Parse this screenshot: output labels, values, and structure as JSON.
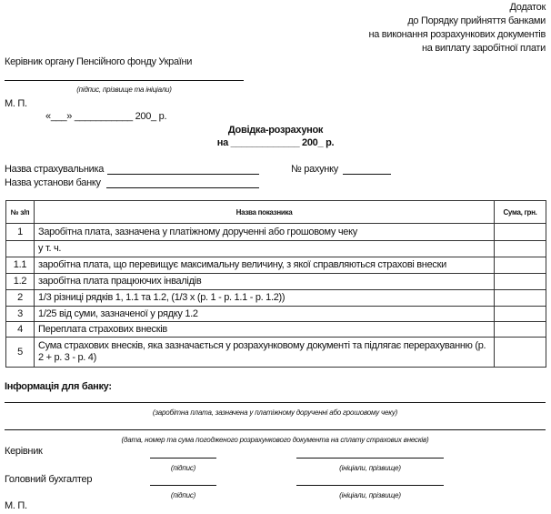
{
  "header": {
    "lines": [
      "Додаток",
      "до Порядку прийняття банками",
      "на виконання розрахункових документів",
      "на виплату заробітної плати"
    ]
  },
  "approval": {
    "head_label": "Керівник органу Пенсійного фонду України",
    "signature_caption": "(підпис, прізвище та ініціали)",
    "stamp": "М. П.",
    "date_line": "«___» ___________ 200_ р."
  },
  "title": {
    "main": "Довідка-розрахунок",
    "date": "на _____________ 200_ р."
  },
  "fields": {
    "insurer_label": "Назва страхувальника",
    "account_label": "№ рахунку",
    "bank_label": "Назва установи банку"
  },
  "table": {
    "headers": [
      "№ з/п",
      "Назва показника",
      "Сума, грн."
    ],
    "rows": [
      {
        "num": "1",
        "name": "Заробітна плата, зазначена у платіжному дорученні або грошовому чеку",
        "sum": ""
      },
      {
        "num": "",
        "name": "у т. ч.",
        "sum": ""
      },
      {
        "num": "1.1",
        "name": "заробітна плата, що перевищує максимальну величину, з якої справляються страхові внески",
        "sum": ""
      },
      {
        "num": "1.2",
        "name": "заробітна плата працюючих інвалідів",
        "sum": ""
      },
      {
        "num": "2",
        "name": "1/3 різниці рядків 1, 1.1 та 1.2, (1/3 х (р. 1 - р. 1.1 - р. 1.2))",
        "sum": ""
      },
      {
        "num": "3",
        "name": "1/25 від суми, зазначеної у рядку 1.2",
        "sum": ""
      },
      {
        "num": "4",
        "name": "Переплата страхових внесків",
        "sum": ""
      },
      {
        "num": "5",
        "name": "Сума страхових внесків, яка зазначається у розрахунковому документі та підлягає перерахуванню (р. 2 + р. 3 - р. 4)",
        "sum": ""
      }
    ]
  },
  "bank_info": {
    "title": "Інформація для банку:",
    "caption1": "(заробітна плата, зазначена у платіжному дорученні або грошовому чеку)",
    "caption2": "(дата, номер та сума погодженого розрахункового документа на сплату страхових внесків)",
    "head_label": "Керівник",
    "accountant_label": "Головний бухгалтер",
    "sign_caption": "(підпис)",
    "name_caption": "(ініціали, прізвище)",
    "stamp": "М. П."
  }
}
